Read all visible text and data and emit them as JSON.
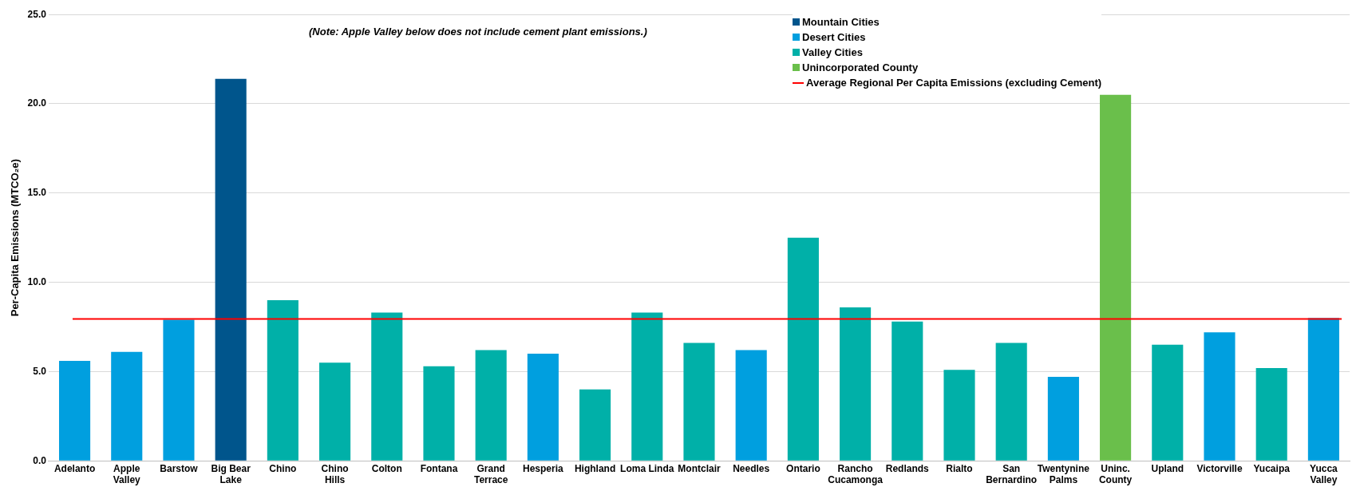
{
  "chart_data": {
    "type": "bar",
    "stacked": true,
    "ylabel": "Per-Capita Emissions (MTCO₂e)",
    "annotations": [
      "(Note: Apple Valley below does not include cement plant emissions.)"
    ],
    "categories": [
      "Adelanto",
      "Apple Valley",
      "Barstow",
      "Big Bear Lake",
      "Chino",
      "Chino Hills",
      "Colton",
      "Fontana",
      "Grand Terrace",
      "Hesperia",
      "Highland",
      "Loma Linda",
      "Montclair",
      "Needles",
      "Ontario",
      "Rancho Cucamonga",
      "Redlands",
      "Rialto",
      "San Bernardino",
      "Twentynine Palms",
      "Uninc. County",
      "Upland",
      "Victorville",
      "Yucaipa",
      "Yucca Valley"
    ],
    "series": [
      {
        "name": "Mountain Cities",
        "color": "#00558c",
        "values": [
          null,
          null,
          null,
          21.4,
          null,
          null,
          null,
          null,
          null,
          null,
          null,
          null,
          null,
          null,
          null,
          null,
          null,
          null,
          null,
          null,
          null,
          null,
          null,
          null,
          null
        ]
      },
      {
        "name": "Desert Cities",
        "color": "#009fdf",
        "values": [
          5.6,
          6.1,
          7.9,
          null,
          null,
          null,
          null,
          null,
          null,
          6.0,
          null,
          null,
          null,
          6.2,
          null,
          null,
          null,
          null,
          null,
          4.7,
          null,
          null,
          7.2,
          null,
          8.0
        ]
      },
      {
        "name": "Valley Cities",
        "color": "#00b0a8",
        "values": [
          null,
          null,
          null,
          null,
          9.0,
          5.5,
          8.3,
          5.3,
          6.2,
          null,
          4.0,
          8.3,
          6.6,
          null,
          12.5,
          8.6,
          7.8,
          5.1,
          6.6,
          null,
          null,
          6.5,
          null,
          5.2,
          null
        ]
      },
      {
        "name": "Unincorporated County",
        "color": "#6abf4b",
        "values": [
          null,
          null,
          null,
          null,
          null,
          null,
          null,
          null,
          null,
          null,
          null,
          null,
          null,
          null,
          null,
          null,
          null,
          null,
          null,
          null,
          20.5,
          null,
          null,
          null,
          null
        ]
      }
    ],
    "ref_lines": [
      {
        "axis": "y",
        "value": 7.95,
        "label": "Average Regional Per Capita Emissions (excluding Cement)",
        "color": "#ff0000"
      }
    ],
    "ylim": [
      0,
      25
    ],
    "yticks": [
      {
        "value": 0,
        "label": "0.0"
      },
      {
        "value": 5,
        "label": "5.0"
      },
      {
        "value": 10,
        "label": "10.0"
      },
      {
        "value": 15,
        "label": "15.0"
      },
      {
        "value": 20,
        "label": "20.0"
      },
      {
        "value": 25,
        "label": "25.0"
      }
    ],
    "grid": "y",
    "legend": "top"
  }
}
